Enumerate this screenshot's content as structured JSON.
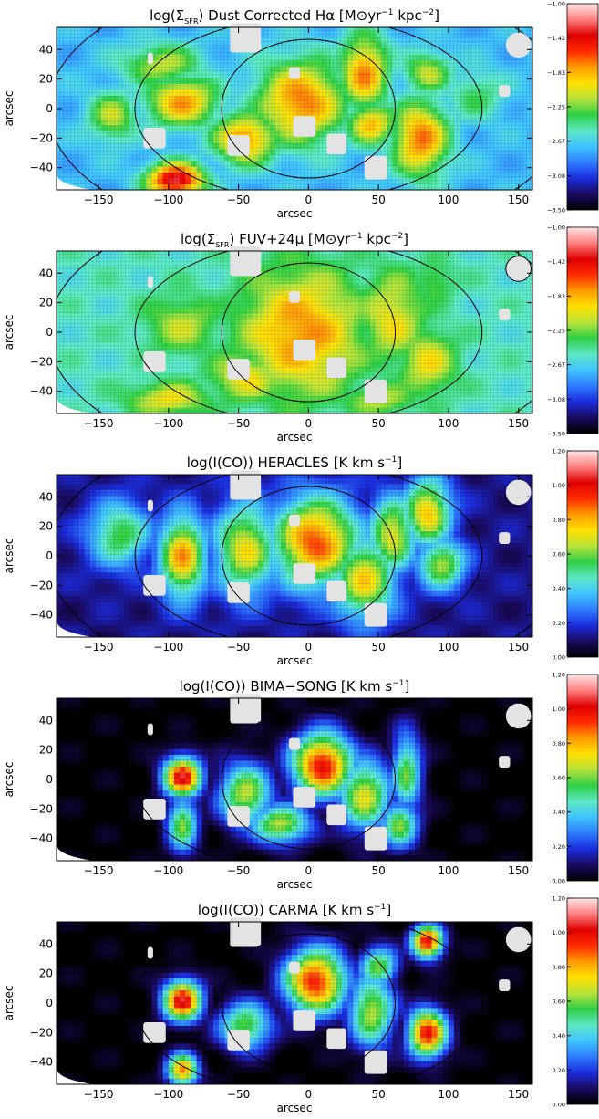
{
  "colors": {
    "colormap": [
      "#000000",
      "#1a0a60",
      "#1b2cdc",
      "#2e7cff",
      "#3fc4ff",
      "#5de8c4",
      "#2ecf45",
      "#b7e23a",
      "#ffe000",
      "#ff9a00",
      "#ff2a00",
      "#e00000",
      "#ff8080",
      "#ffe4e4"
    ],
    "mask": "#e3e3e3",
    "frame": "#000000"
  },
  "chart_data": [
    {
      "type": "heatmap",
      "title": "log(ΣSFR) Dust Corrected Hα [M⊙yr⁻¹ kpc⁻²]",
      "title_parts": {
        "a": "log(",
        "sym": "Σ",
        "sub": "SFR",
        "b": ") Dust Corrected Hα [M⊙yr",
        "sup1": "−1",
        "c": " kpc",
        "sup2": "−2",
        "d": "]"
      },
      "xlabel": "arcsec",
      "ylabel": "arcsec",
      "xlim": [
        -180,
        160
      ],
      "ylim": [
        -55,
        55
      ],
      "xticks": [
        -150,
        -100,
        -50,
        0,
        50,
        100,
        150
      ],
      "yticks": [
        -40,
        -20,
        0,
        20,
        40
      ],
      "colorbar": {
        "ticks": [
          "-1.00",
          "-1.42",
          "-1.83",
          "-2.25",
          "-2.67",
          "-3.08",
          "-3.50"
        ],
        "range": [
          -3.5,
          -1.0
        ]
      },
      "blobs": [
        {
          "x": -90,
          "y": 5,
          "level": 0.68,
          "sx": 18,
          "sy": 12
        },
        {
          "x": -95,
          "y": -48,
          "level": 0.9,
          "sx": 14,
          "sy": 8
        },
        {
          "x": -105,
          "y": 30,
          "level": 0.55,
          "sx": 20,
          "sy": 10
        },
        {
          "x": -45,
          "y": -20,
          "level": 0.7,
          "sx": 16,
          "sy": 12
        },
        {
          "x": -5,
          "y": 5,
          "level": 0.72,
          "sx": 22,
          "sy": 20
        },
        {
          "x": 40,
          "y": 25,
          "level": 0.7,
          "sx": 12,
          "sy": 18
        },
        {
          "x": 45,
          "y": -10,
          "level": 0.65,
          "sx": 12,
          "sy": 10
        },
        {
          "x": 80,
          "y": -20,
          "level": 0.72,
          "sx": 14,
          "sy": 18
        },
        {
          "x": 85,
          "y": 25,
          "level": 0.55,
          "sx": 12,
          "sy": 10
        },
        {
          "x": -140,
          "y": -5,
          "level": 0.55,
          "sx": 12,
          "sy": 12
        },
        {
          "x": 120,
          "y": 10,
          "level": 0.45,
          "sx": 14,
          "sy": 12
        }
      ],
      "background": 0.3,
      "mask_boxes": [
        {
          "x": -110,
          "y": -20,
          "w": 16,
          "h": 14
        },
        {
          "x": -50,
          "y": -25,
          "w": 16,
          "h": 14
        },
        {
          "x": -10,
          "y": 24,
          "w": 8,
          "h": 8
        },
        {
          "x": -3,
          "y": -12,
          "w": 16,
          "h": 14
        },
        {
          "x": 20,
          "y": -24,
          "w": 14,
          "h": 14
        },
        {
          "x": 48,
          "y": -40,
          "w": 16,
          "h": 16
        },
        {
          "x": -45,
          "y": 48,
          "w": 22,
          "h": 20
        },
        {
          "x": 140,
          "y": 12,
          "w": 8,
          "h": 8
        },
        {
          "x": -113,
          "y": 34,
          "w": 4,
          "h": 8
        }
      ],
      "beam": {
        "x": 150,
        "y": 43,
        "d": 9
      }
    },
    {
      "type": "heatmap",
      "title": "log(ΣSFR) FUV+24μ [M⊙yr⁻¹ kpc⁻²]",
      "title_parts": {
        "a": "log(",
        "sym": "Σ",
        "sub": "SFR",
        "b": ") FUV+24μ [M⊙yr",
        "sup1": "−1",
        "c": " kpc",
        "sup2": "−2",
        "d": "]"
      },
      "xlabel": "arcsec",
      "ylabel": "arcsec",
      "xlim": [
        -180,
        160
      ],
      "ylim": [
        -55,
        55
      ],
      "xticks": [
        -150,
        -100,
        -50,
        0,
        50,
        100,
        150
      ],
      "yticks": [
        -40,
        -20,
        0,
        20,
        40
      ],
      "colorbar": {
        "ticks": [
          "-1.00",
          "-1.42",
          "-1.83",
          "-2.25",
          "-2.67",
          "-3.08",
          "-3.50"
        ],
        "range": [
          -3.5,
          -1.0
        ]
      },
      "blobs": [
        {
          "x": -5,
          "y": 0,
          "level": 0.7,
          "sx": 30,
          "sy": 30
        },
        {
          "x": -90,
          "y": 5,
          "level": 0.55,
          "sx": 18,
          "sy": 14
        },
        {
          "x": -100,
          "y": -45,
          "level": 0.6,
          "sx": 20,
          "sy": 8
        },
        {
          "x": -45,
          "y": -30,
          "level": 0.6,
          "sx": 18,
          "sy": 12
        },
        {
          "x": 60,
          "y": 10,
          "level": 0.6,
          "sx": 16,
          "sy": 22
        },
        {
          "x": 85,
          "y": -20,
          "level": 0.6,
          "sx": 14,
          "sy": 16
        },
        {
          "x": 50,
          "y": -45,
          "level": 0.55,
          "sx": 18,
          "sy": 8
        },
        {
          "x": 90,
          "y": 35,
          "level": 0.5,
          "sx": 10,
          "sy": 10
        }
      ],
      "background": 0.38,
      "mask_boxes": [
        {
          "x": -110,
          "y": -20,
          "w": 16,
          "h": 14
        },
        {
          "x": -50,
          "y": -25,
          "w": 16,
          "h": 14
        },
        {
          "x": -10,
          "y": 24,
          "w": 8,
          "h": 8
        },
        {
          "x": -3,
          "y": -12,
          "w": 16,
          "h": 14
        },
        {
          "x": 20,
          "y": -24,
          "w": 14,
          "h": 14
        },
        {
          "x": 48,
          "y": -40,
          "w": 16,
          "h": 16
        },
        {
          "x": -45,
          "y": 48,
          "w": 22,
          "h": 20
        },
        {
          "x": 140,
          "y": 12,
          "w": 8,
          "h": 8
        },
        {
          "x": -113,
          "y": 34,
          "w": 4,
          "h": 8
        }
      ],
      "beam": {
        "x": 150,
        "y": 43,
        "d": 9
      }
    },
    {
      "type": "heatmap",
      "title": "log(I(CO)) HERACLES [K km s⁻¹]",
      "title_parts": {
        "a": "log(I(CO)) HERACLES [K km s",
        "sup1": "−1",
        "d": "]"
      },
      "xlabel": "arcsec",
      "ylabel": "arcsec",
      "xlim": [
        -180,
        160
      ],
      "ylim": [
        -55,
        55
      ],
      "xticks": [
        -150,
        -100,
        -50,
        0,
        50,
        100,
        150
      ],
      "yticks": [
        -40,
        -20,
        0,
        20,
        40
      ],
      "colorbar": {
        "ticks": [
          "1.20",
          "1.00",
          "0.80",
          "0.60",
          "0.40",
          "0.20",
          "0.00"
        ],
        "range": [
          0.0,
          1.2
        ]
      },
      "blobs": [
        {
          "x": 5,
          "y": 10,
          "level": 0.75,
          "sx": 22,
          "sy": 22
        },
        {
          "x": -90,
          "y": 0,
          "level": 0.68,
          "sx": 12,
          "sy": 20
        },
        {
          "x": -45,
          "y": 5,
          "level": 0.6,
          "sx": 16,
          "sy": 22
        },
        {
          "x": 40,
          "y": -15,
          "level": 0.62,
          "sx": 16,
          "sy": 20
        },
        {
          "x": 60,
          "y": 15,
          "level": 0.6,
          "sx": 12,
          "sy": 18
        },
        {
          "x": 85,
          "y": 30,
          "level": 0.65,
          "sx": 12,
          "sy": 16
        },
        {
          "x": -135,
          "y": 15,
          "level": 0.48,
          "sx": 16,
          "sy": 16
        },
        {
          "x": 95,
          "y": -5,
          "level": 0.55,
          "sx": 12,
          "sy": 12
        }
      ],
      "background": 0.1,
      "mask_boxes": [
        {
          "x": -110,
          "y": -20,
          "w": 16,
          "h": 14
        },
        {
          "x": -50,
          "y": -25,
          "w": 16,
          "h": 14
        },
        {
          "x": -10,
          "y": 24,
          "w": 8,
          "h": 8
        },
        {
          "x": -3,
          "y": -12,
          "w": 16,
          "h": 14
        },
        {
          "x": 20,
          "y": -24,
          "w": 14,
          "h": 14
        },
        {
          "x": 48,
          "y": -40,
          "w": 16,
          "h": 16
        },
        {
          "x": -45,
          "y": 48,
          "w": 22,
          "h": 20
        },
        {
          "x": 140,
          "y": 12,
          "w": 8,
          "h": 8
        },
        {
          "x": -113,
          "y": 34,
          "w": 4,
          "h": 8
        }
      ],
      "beam": {
        "x": 150,
        "y": 43,
        "d": 9
      }
    },
    {
      "type": "heatmap",
      "title": "log(I(CO)) BIMA−SONG [K km s⁻¹]",
      "title_parts": {
        "a": "log(I(CO)) BIMA−SONG [K km s",
        "sup1": "−1",
        "d": "]"
      },
      "xlabel": "arcsec",
      "ylabel": "arcsec",
      "xlim": [
        -180,
        160
      ],
      "ylim": [
        -55,
        55
      ],
      "xticks": [
        -150,
        -100,
        -50,
        0,
        50,
        100,
        150
      ],
      "yticks": [
        -40,
        -20,
        0,
        20,
        40
      ],
      "colorbar": {
        "ticks": [
          "1.20",
          "1.00",
          "0.80",
          "0.60",
          "0.40",
          "0.20",
          "0.00"
        ],
        "range": [
          0.0,
          1.2
        ]
      },
      "blobs": [
        {
          "x": 10,
          "y": 10,
          "level": 0.82,
          "sx": 16,
          "sy": 16
        },
        {
          "x": -90,
          "y": 2,
          "level": 0.85,
          "sx": 10,
          "sy": 10
        },
        {
          "x": -90,
          "y": -30,
          "level": 0.5,
          "sx": 8,
          "sy": 14
        },
        {
          "x": -45,
          "y": -10,
          "level": 0.55,
          "sx": 14,
          "sy": 16
        },
        {
          "x": 40,
          "y": -10,
          "level": 0.58,
          "sx": 14,
          "sy": 18
        },
        {
          "x": 70,
          "y": 5,
          "level": 0.48,
          "sx": 8,
          "sy": 20
        },
        {
          "x": -20,
          "y": -30,
          "level": 0.55,
          "sx": 16,
          "sy": 10
        },
        {
          "x": 65,
          "y": -30,
          "level": 0.5,
          "sx": 10,
          "sy": 12
        }
      ],
      "background": 0.0,
      "mask_boxes": [
        {
          "x": -110,
          "y": -20,
          "w": 16,
          "h": 14
        },
        {
          "x": -50,
          "y": -25,
          "w": 16,
          "h": 14
        },
        {
          "x": -10,
          "y": 24,
          "w": 8,
          "h": 8
        },
        {
          "x": -3,
          "y": -12,
          "w": 16,
          "h": 14
        },
        {
          "x": 20,
          "y": -24,
          "w": 14,
          "h": 14
        },
        {
          "x": 48,
          "y": -40,
          "w": 16,
          "h": 16
        },
        {
          "x": -45,
          "y": 48,
          "w": 22,
          "h": 20
        },
        {
          "x": 140,
          "y": 12,
          "w": 8,
          "h": 8
        },
        {
          "x": -113,
          "y": 34,
          "w": 4,
          "h": 8
        }
      ],
      "beam": {
        "x": 150,
        "y": 43,
        "d": 9
      }
    },
    {
      "type": "heatmap",
      "title": "log(I(CO)) CARMA [K km s⁻¹]",
      "title_parts": {
        "a": "log(I(CO)) CARMA [K km s",
        "sup1": "−1",
        "d": "]"
      },
      "xlabel": "arcsec",
      "ylabel": "arcsec",
      "xlim": [
        -180,
        160
      ],
      "ylim": [
        -55,
        55
      ],
      "xticks": [
        -150,
        -100,
        -50,
        0,
        50,
        100,
        150
      ],
      "yticks": [
        -40,
        -20,
        0,
        20,
        40
      ],
      "colorbar": {
        "ticks": [
          "1.20",
          "1.00",
          "0.80",
          "0.60",
          "0.40",
          "0.20",
          "0.00"
        ],
        "range": [
          0.0,
          1.2
        ]
      },
      "blobs": [
        {
          "x": 5,
          "y": 15,
          "level": 0.8,
          "sx": 16,
          "sy": 16
        },
        {
          "x": -90,
          "y": 2,
          "level": 0.85,
          "sx": 10,
          "sy": 10
        },
        {
          "x": -90,
          "y": -45,
          "level": 0.7,
          "sx": 8,
          "sy": 8
        },
        {
          "x": 85,
          "y": 42,
          "level": 0.85,
          "sx": 8,
          "sy": 8
        },
        {
          "x": 85,
          "y": -20,
          "level": 0.8,
          "sx": 10,
          "sy": 12
        },
        {
          "x": -45,
          "y": -15,
          "level": 0.5,
          "sx": 14,
          "sy": 12
        },
        {
          "x": 45,
          "y": -5,
          "level": 0.55,
          "sx": 12,
          "sy": 18
        },
        {
          "x": 50,
          "y": 25,
          "level": 0.5,
          "sx": 10,
          "sy": 10
        }
      ],
      "background": 0.0,
      "mask_boxes": [
        {
          "x": -110,
          "y": -20,
          "w": 16,
          "h": 14
        },
        {
          "x": -50,
          "y": -25,
          "w": 16,
          "h": 14
        },
        {
          "x": -10,
          "y": 24,
          "w": 8,
          "h": 8
        },
        {
          "x": -3,
          "y": -12,
          "w": 16,
          "h": 14
        },
        {
          "x": 20,
          "y": -24,
          "w": 14,
          "h": 14
        },
        {
          "x": 48,
          "y": -40,
          "w": 16,
          "h": 16
        },
        {
          "x": -45,
          "y": 48,
          "w": 22,
          "h": 20
        },
        {
          "x": 140,
          "y": 12,
          "w": 8,
          "h": 8
        },
        {
          "x": -113,
          "y": 34,
          "w": 4,
          "h": 8
        }
      ],
      "beam": {
        "x": 150,
        "y": 43,
        "d": 9
      }
    }
  ]
}
